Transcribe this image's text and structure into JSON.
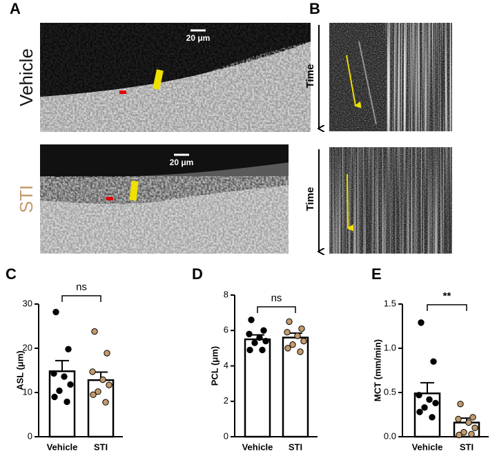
{
  "panel_labels": [
    "A",
    "B",
    "C",
    "D",
    "E"
  ],
  "images": {
    "vehicle_label": "Vehicle",
    "sti_label": "STI",
    "scale_bars": [
      "20 μm",
      "20 μm"
    ],
    "time_labels": [
      "Time",
      "Time"
    ]
  },
  "chart_data": [
    {
      "type": "bar",
      "ylabel": "ASL (μm)",
      "categories": [
        "Vehicle",
        "STI"
      ],
      "values": [
        14.8,
        12.8
      ],
      "errors": [
        2.4,
        1.8
      ],
      "points": [
        [
          28.2,
          19.8,
          14.3,
          13.6,
          11.8,
          10.4,
          9.0,
          7.9
        ],
        [
          23.8,
          18.9,
          14.7,
          12.9,
          11.7,
          10.2,
          9.5,
          7.8
        ]
      ],
      "bar_color": "#ffffff",
      "point_colors": [
        "#000000",
        "#c49a6c"
      ],
      "significance": "ns",
      "ylim": [
        0,
        30
      ],
      "yticks": [
        0,
        10,
        20,
        30
      ]
    },
    {
      "type": "bar",
      "ylabel": "PCL (μm)",
      "categories": [
        "Vehicle",
        "STI"
      ],
      "values": [
        5.5,
        5.6
      ],
      "errors": [
        0.25,
        0.25
      ],
      "points": [
        [
          6.6,
          6.0,
          5.8,
          5.6,
          5.4,
          5.3,
          4.9,
          4.9
        ],
        [
          6.5,
          6.1,
          5.9,
          5.7,
          5.4,
          5.2,
          5.0,
          4.8
        ]
      ],
      "bar_color": "#ffffff",
      "point_colors": [
        "#000000",
        "#c49a6c"
      ],
      "significance": "ns",
      "ylim": [
        0,
        8
      ],
      "yticks": [
        0,
        2,
        4,
        6,
        8
      ]
    },
    {
      "type": "bar",
      "ylabel": "MCT (mm/min)",
      "categories": [
        "Vehicle",
        "STI"
      ],
      "values": [
        0.49,
        0.16
      ],
      "errors": [
        0.12,
        0.05
      ],
      "points": [
        [
          1.29,
          0.85,
          0.47,
          0.42,
          0.38,
          0.33,
          0.28,
          0.22
        ],
        [
          0.37,
          0.22,
          0.2,
          0.16,
          0.1,
          0.05,
          0.02,
          0.03
        ]
      ],
      "bar_color": "#ffffff",
      "point_colors": [
        "#000000",
        "#c49a6c"
      ],
      "significance": "**",
      "ylim": [
        0,
        1.5
      ],
      "yticks": [
        {
          "value": 0,
          "label": "0.0"
        },
        {
          "value": 0.5,
          "label": "0.5"
        },
        {
          "value": 1,
          "label": "1.0"
        },
        {
          "value": 1.5,
          "label": "1.5"
        }
      ]
    }
  ]
}
